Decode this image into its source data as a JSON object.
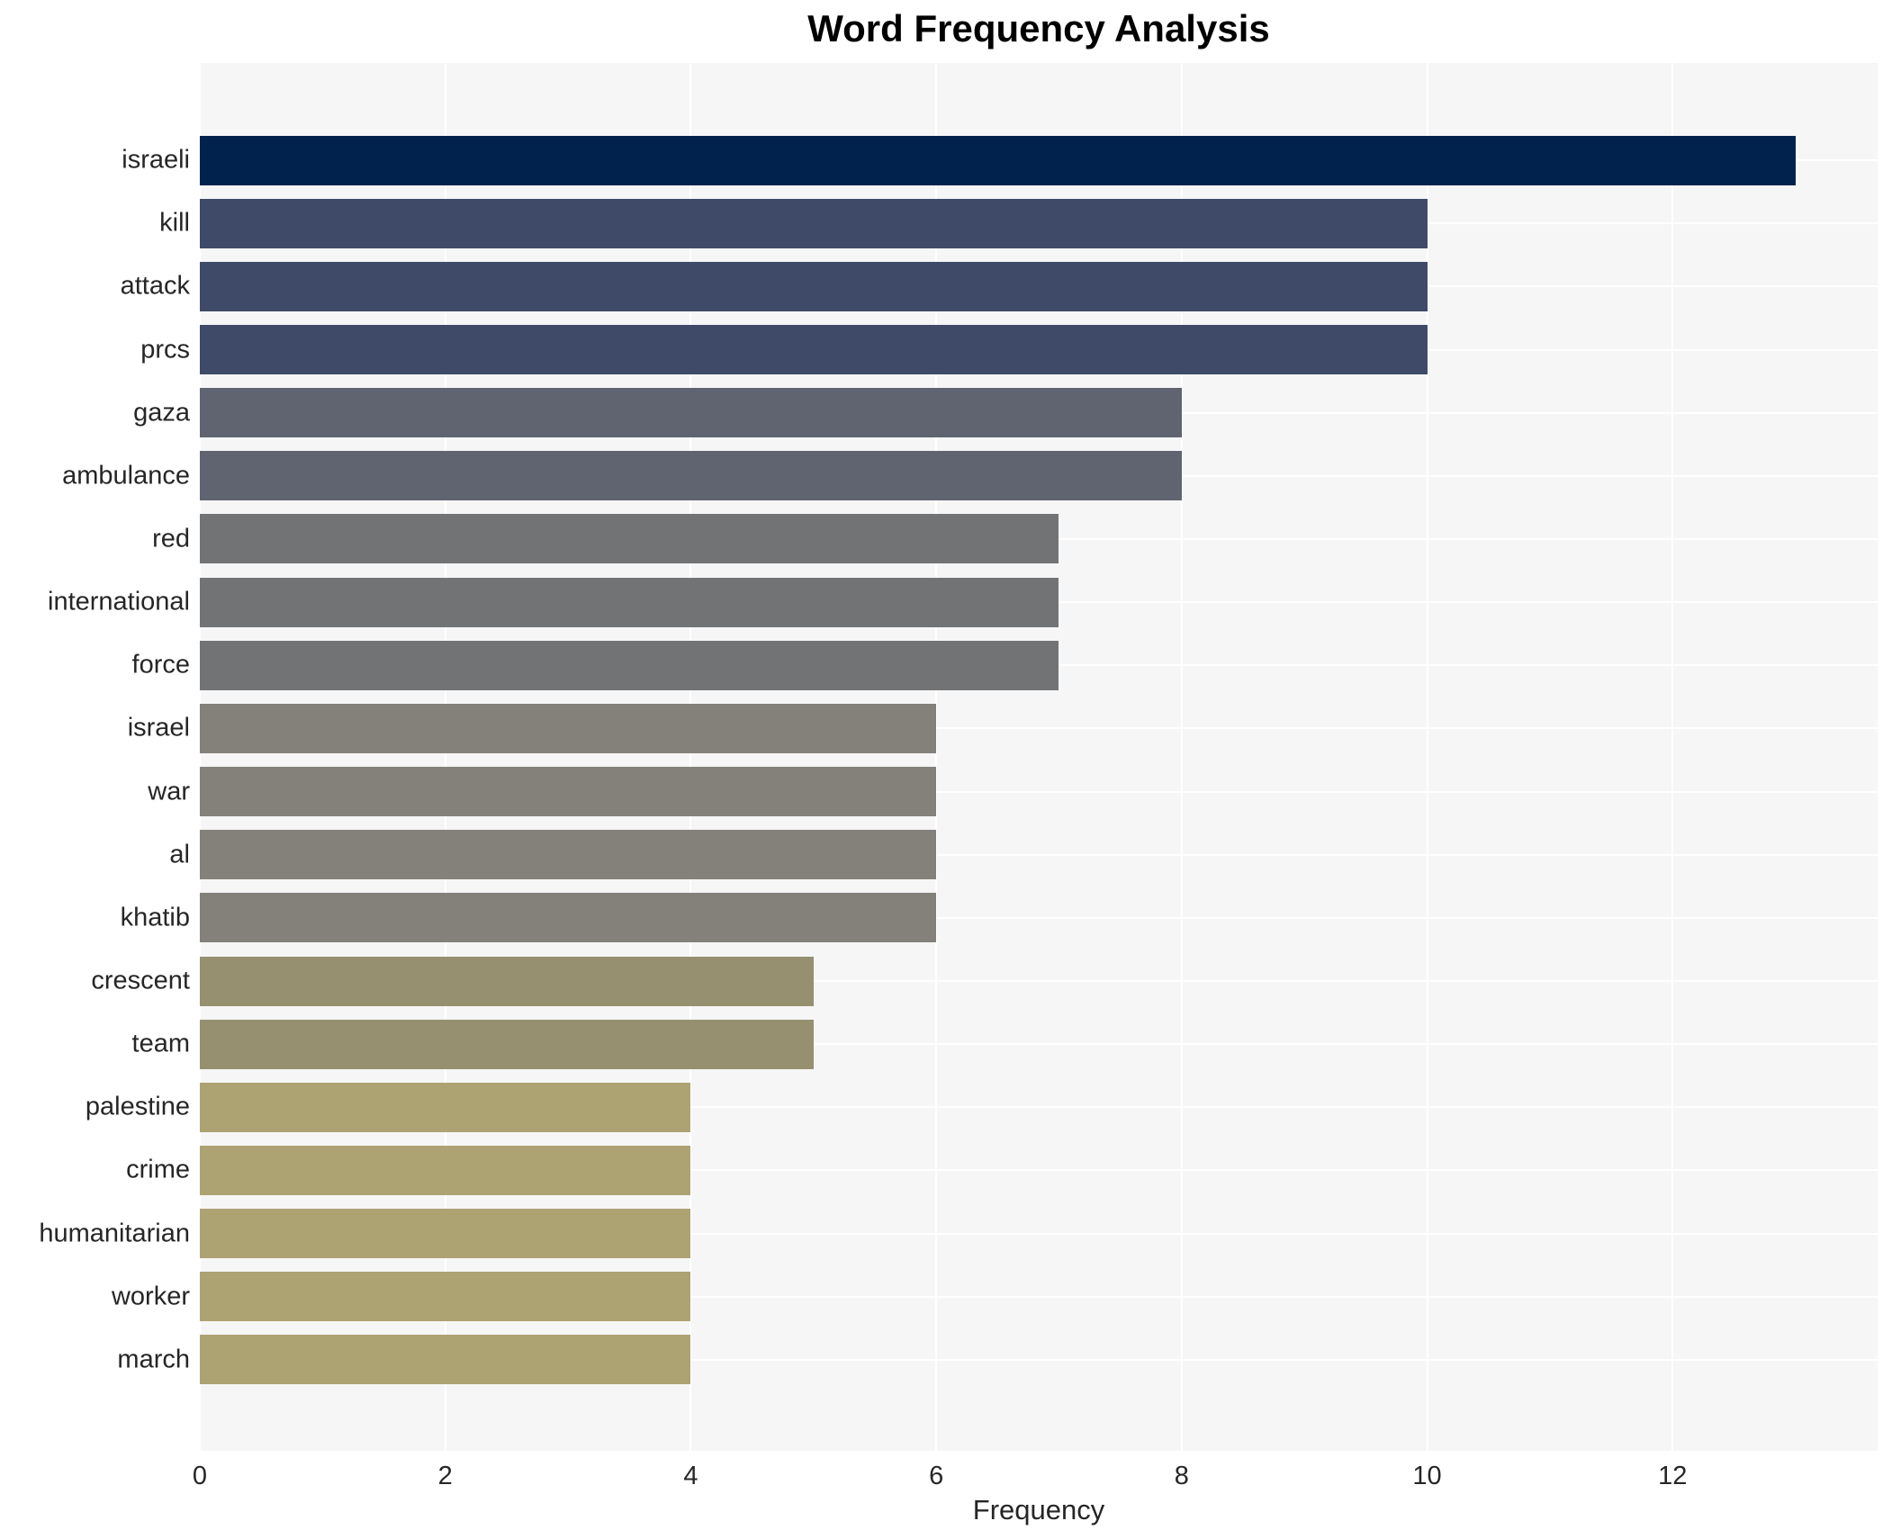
{
  "title": "Word Frequency Analysis",
  "chart_data": {
    "type": "bar",
    "orientation": "horizontal",
    "title": "Word Frequency Analysis",
    "xlabel": "Frequency",
    "ylabel": "",
    "categories": [
      "israeli",
      "kill",
      "attack",
      "prcs",
      "gaza",
      "ambulance",
      "red",
      "international",
      "force",
      "israel",
      "war",
      "al",
      "khatib",
      "crescent",
      "team",
      "palestine",
      "crime",
      "humanitarian",
      "worker",
      "march"
    ],
    "values": [
      13,
      10,
      10,
      10,
      8,
      8,
      7,
      7,
      7,
      6,
      6,
      6,
      6,
      5,
      5,
      4,
      4,
      4,
      4,
      4
    ],
    "bar_colors": [
      "#01224d",
      "#3e4a68",
      "#3e4a68",
      "#3e4a68",
      "#606370",
      "#606370",
      "#727374",
      "#727374",
      "#727374",
      "#838179",
      "#838179",
      "#838179",
      "#838179",
      "#969071",
      "#969071",
      "#ada272",
      "#ada272",
      "#ada272",
      "#ada272",
      "#ada272"
    ],
    "x_ticks": [
      0,
      2,
      4,
      6,
      8,
      10,
      12
    ],
    "xlim": [
      0,
      13.67
    ],
    "grid": true,
    "legend": "none",
    "plot_bg_color": "#f6f6f7",
    "grid_color": "#ffffff",
    "colormap": "cividis"
  }
}
